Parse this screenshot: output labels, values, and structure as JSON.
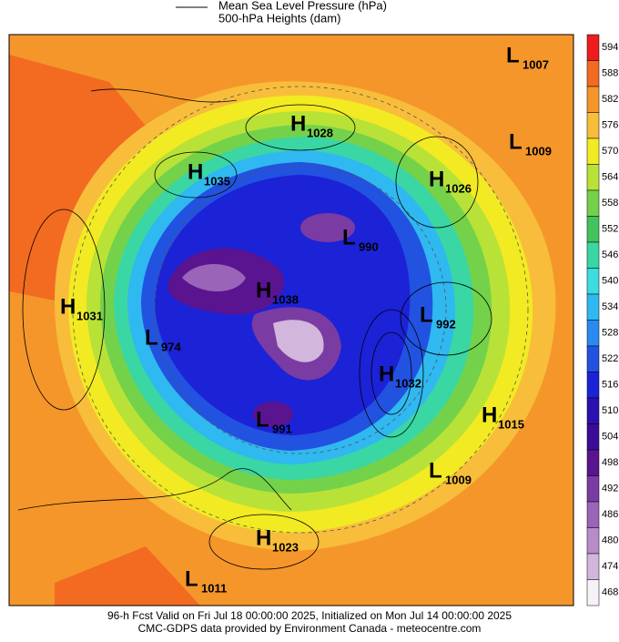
{
  "legend": {
    "line1": "Mean Sea Level Pressure (hPa)",
    "line2": "500-hPa Heights (dam)"
  },
  "colorbar": {
    "levels": [
      594,
      588,
      582,
      576,
      570,
      564,
      558,
      552,
      546,
      540,
      534,
      528,
      522,
      516,
      510,
      504,
      498,
      492,
      486,
      480,
      474,
      468
    ],
    "colors": [
      "#ee1c1c",
      "#f26b21",
      "#f5962b",
      "#f8bd3a",
      "#f2ea22",
      "#b8e238",
      "#74d24a",
      "#44c25c",
      "#3ad6a4",
      "#3cdce0",
      "#30b8f0",
      "#2a8af0",
      "#2252e0",
      "#1c22d6",
      "#2c10b0",
      "#3c0c98",
      "#5a1490",
      "#7a3ca2",
      "#9a64b8",
      "#b88cc8",
      "#d2b6dc",
      "#f6f2f8"
    ]
  },
  "centers": [
    {
      "letter": "L",
      "value": "1007"
    },
    {
      "letter": "H",
      "value": "1028"
    },
    {
      "letter": "L",
      "value": "1009"
    },
    {
      "letter": "H",
      "value": "1035"
    },
    {
      "letter": "H",
      "value": "1026"
    },
    {
      "letter": "L",
      "value": "990"
    },
    {
      "letter": "H",
      "value": "1031"
    },
    {
      "letter": "H",
      "value": "1038"
    },
    {
      "letter": "L",
      "value": "992"
    },
    {
      "letter": "L",
      "value": "974"
    },
    {
      "letter": "H",
      "value": "1032"
    },
    {
      "letter": "H",
      "value": "1015"
    },
    {
      "letter": "L",
      "value": "991"
    },
    {
      "letter": "L",
      "value": "1009"
    },
    {
      "letter": "H",
      "value": "1023"
    },
    {
      "letter": "L",
      "value": "1011"
    }
  ],
  "footer": {
    "line1": "96-h Fcst Valid on Fri Jul 18 00:00:00 2025, Initialized on Mon Jul 14 00:00:00 2025",
    "line2": "CMC-GDPS data provided by Environment Canada - meteocentre.com"
  }
}
